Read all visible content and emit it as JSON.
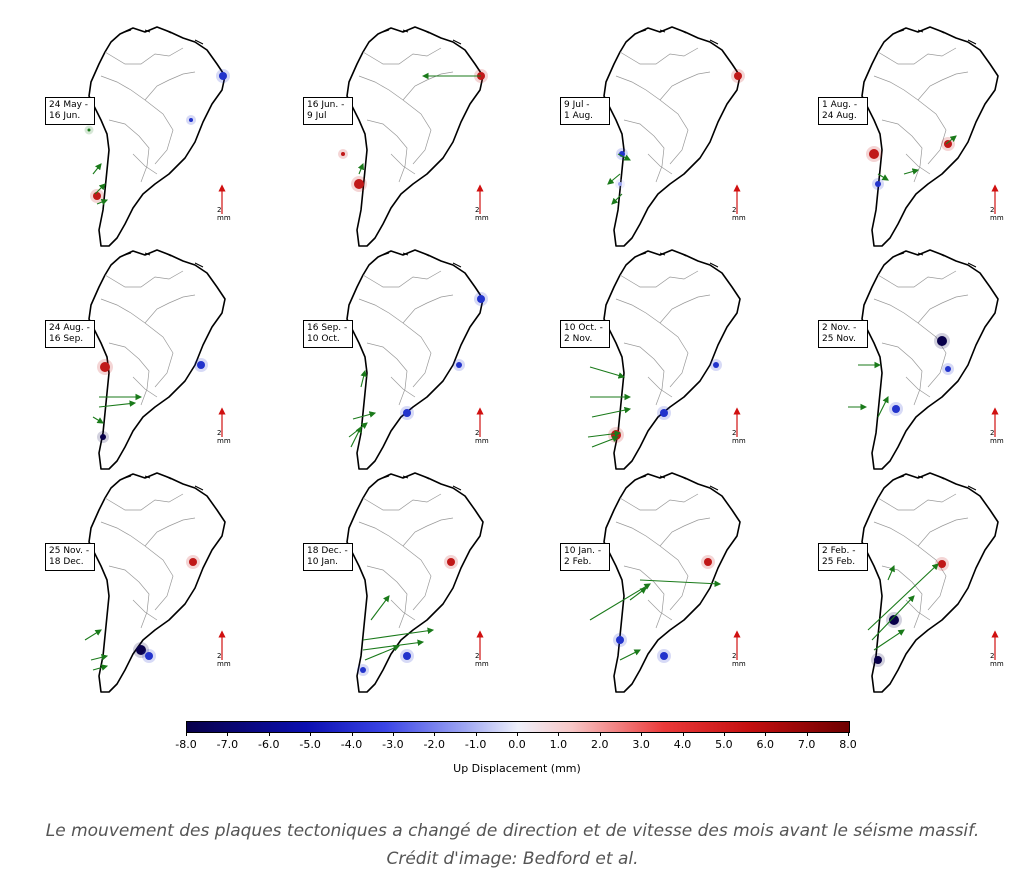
{
  "panels": [
    {
      "l1": "24 May -",
      "l2": "16 Jun.",
      "scale": "2 mm"
    },
    {
      "l1": "16 Jun. -",
      "l2": "9 Jul",
      "scale": "2 mm"
    },
    {
      "l1": "9 Jul -",
      "l2": "1 Aug.",
      "scale": "2 mm"
    },
    {
      "l1": "1 Aug. -",
      "l2": "24 Aug.",
      "scale": "2 mm"
    },
    {
      "l1": "24 Aug. -",
      "l2": "16 Sep.",
      "scale": "2 mm"
    },
    {
      "l1": "16 Sep. -",
      "l2": "10 Oct.",
      "scale": "2 mm"
    },
    {
      "l1": "10 Oct. -",
      "l2": "2 Nov.",
      "scale": "2 mm"
    },
    {
      "l1": "2 Nov. -",
      "l2": "25 Nov.",
      "scale": "2 mm"
    },
    {
      "l1": "25 Nov. -",
      "l2": "18 Dec.",
      "scale": "2 mm"
    },
    {
      "l1": "18 Dec. -",
      "l2": "10 Jan.",
      "scale": "2 mm"
    },
    {
      "l1": "10 Jan. -",
      "l2": "2 Feb.",
      "scale": "2 mm"
    },
    {
      "l1": "2 Feb. -",
      "l2": "25 Feb.",
      "scale": "2 mm"
    }
  ],
  "colorbar": {
    "ticks": [
      "-8.0",
      "-7.0",
      "-6.0",
      "-5.0",
      "-4.0",
      "-3.0",
      "-2.0",
      "-1.0",
      "0.0",
      "1.0",
      "2.0",
      "3.0",
      "4.0",
      "5.0",
      "6.0",
      "7.0",
      "8.0"
    ],
    "range": [
      -8,
      8
    ],
    "label": "Up Displacement (mm)"
  },
  "caption": "Le mouvement des plaques tectoniques a changé de direction et de vitesse des mois avant le séisme massif. Crédit d'image: Bedford et al.",
  "colors": {
    "arrow": "#1a7a1a",
    "scale_arrow": "#d01010",
    "uplift": "#c01818",
    "subsidence": "#2233cc"
  }
}
